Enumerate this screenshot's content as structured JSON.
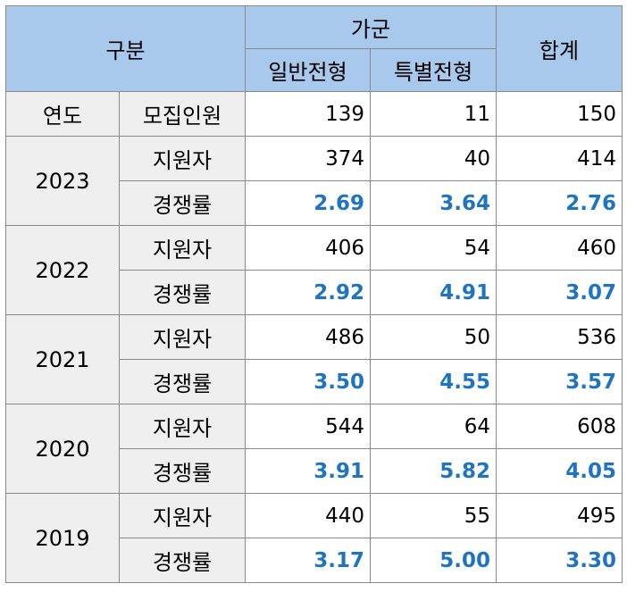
{
  "header": {
    "category": "구분",
    "gagun": "가군",
    "general": "일반전형",
    "special": "특별전형",
    "total": "합계"
  },
  "quota_row": {
    "year_label": "연도",
    "label": "모집인원",
    "general": "139",
    "special": "11",
    "total": "150"
  },
  "years": [
    {
      "year": "2023",
      "applicants": {
        "label": "지원자",
        "general": "374",
        "special": "40",
        "total": "414"
      },
      "ratio": {
        "label": "경쟁률",
        "general": "2.69",
        "special": "3.64",
        "total": "2.76"
      }
    },
    {
      "year": "2022",
      "applicants": {
        "label": "지원자",
        "general": "406",
        "special": "54",
        "total": "460"
      },
      "ratio": {
        "label": "경쟁률",
        "general": "2.92",
        "special": "4.91",
        "total": "3.07"
      }
    },
    {
      "year": "2021",
      "applicants": {
        "label": "지원자",
        "general": "486",
        "special": "50",
        "total": "536"
      },
      "ratio": {
        "label": "경쟁률",
        "general": "3.50",
        "special": "4.55",
        "total": "3.57"
      }
    },
    {
      "year": "2020",
      "applicants": {
        "label": "지원자",
        "general": "544",
        "special": "64",
        "total": "608"
      },
      "ratio": {
        "label": "경쟁률",
        "general": "3.91",
        "special": "5.82",
        "total": "4.05"
      }
    },
    {
      "year": "2019",
      "applicants": {
        "label": "지원자",
        "general": "440",
        "special": "55",
        "total": "495"
      },
      "ratio": {
        "label": "경쟁률",
        "general": "3.17",
        "special": "5.00",
        "total": "3.30"
      }
    }
  ],
  "colors": {
    "header_bg": "#a8c8ec",
    "label_bg": "#efefef",
    "ratio_text": "#1e74c0",
    "border": "#8a8a8a"
  }
}
